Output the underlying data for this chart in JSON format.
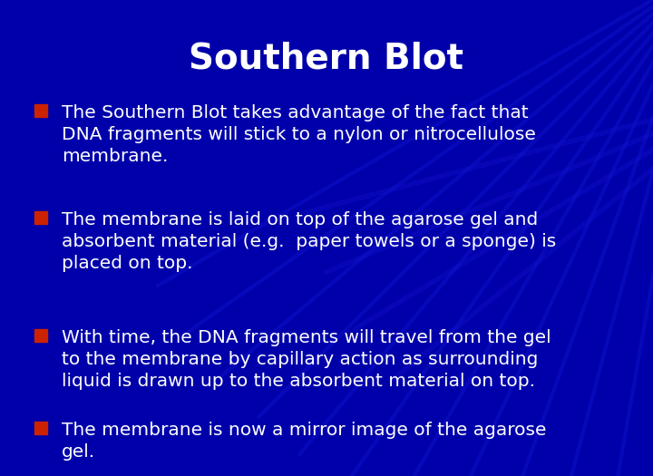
{
  "title": "Southern Blot",
  "title_color": "#FFFFFF",
  "title_fontsize": 28,
  "background_color": "#0000AA",
  "bullet_color": "#CC2200",
  "text_color": "#FFFFFF",
  "text_fontsize": 14.5,
  "bullets": [
    "The Southern Blot takes advantage of the fact that\nDNA fragments will stick to a nylon or nitrocellulose\nmembrane.",
    "The membrane is laid on top of the agarose gel and\nabsorbent material (e.g.  paper towels or a sponge) is\nplaced on top.",
    "With time, the DNA fragments will travel from the gel\nto the membrane by capillary action as surrounding\nliquid is drawn up to the absorbent material on top.",
    "The membrane is now a mirror image of the agarose\ngel."
  ],
  "streak_color": "#1111CC",
  "streak_alpha": 0.5
}
